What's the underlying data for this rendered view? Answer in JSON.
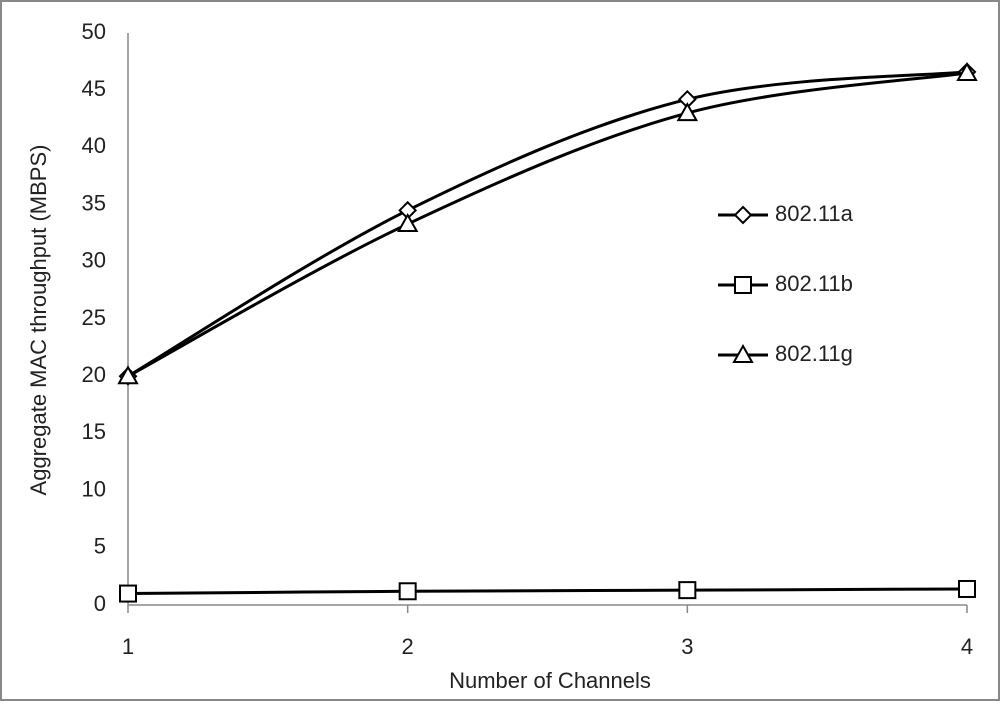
{
  "chart_data": {
    "type": "line",
    "x_label": "Number of Channels",
    "y_label": "Aggregate MAC throughput (MBPS)",
    "x": [
      1,
      2,
      3,
      4
    ],
    "xlim": [
      1,
      4
    ],
    "xticks": [
      1,
      2,
      3,
      4
    ],
    "ylim": [
      0,
      50
    ],
    "yticks": [
      0,
      5,
      10,
      15,
      20,
      25,
      30,
      35,
      40,
      45,
      50
    ],
    "smooth": true,
    "series": [
      {
        "name": "802.11a",
        "color": "#000000",
        "marker": "diamond",
        "values": [
          20,
          34.5,
          44.2,
          46.6
        ]
      },
      {
        "name": "802.11b",
        "color": "#000000",
        "marker": "square",
        "values": [
          1,
          1.2,
          1.3,
          1.4
        ]
      },
      {
        "name": "802.11g",
        "color": "#000000",
        "marker": "triangle",
        "values": [
          20,
          33.3,
          43,
          46.5
        ]
      }
    ]
  }
}
